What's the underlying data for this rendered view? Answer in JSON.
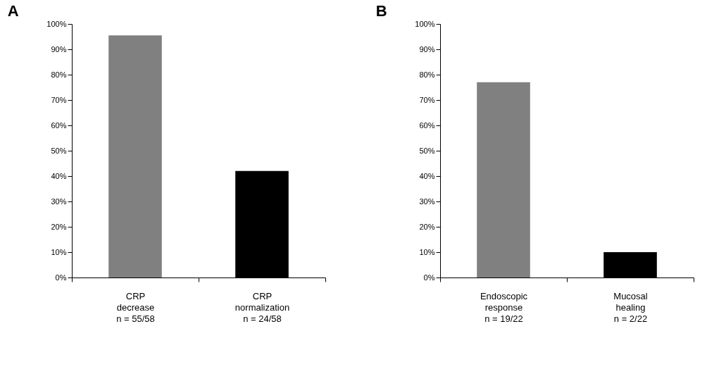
{
  "chart_data": [
    {
      "type": "bar",
      "title": "A",
      "categories": [
        "CRP\ndecrease\nn = 55/58",
        "CRP\nnormalization\nn = 24/58"
      ],
      "values": [
        95.5,
        42
      ],
      "colors": [
        "#808080",
        "#000000"
      ],
      "ylim": [
        0,
        100
      ],
      "yticks": [
        {
          "value": 0,
          "label": "0%"
        },
        {
          "value": 10,
          "label": "10%"
        },
        {
          "value": 20,
          "label": "20%"
        },
        {
          "value": 30,
          "label": "30%"
        },
        {
          "value": 40,
          "label": "40%"
        },
        {
          "value": 50,
          "label": "50%"
        },
        {
          "value": 60,
          "label": "60%"
        },
        {
          "value": 70,
          "label": "70%"
        },
        {
          "value": 80,
          "label": "80%"
        },
        {
          "value": 90,
          "label": "90%"
        },
        {
          "value": 100,
          "label": "100%"
        }
      ],
      "grid": false
    },
    {
      "type": "bar",
      "title": "B",
      "categories": [
        "Endoscopic\nresponse\nn = 19/22",
        "Mucosal\nhealing\nn = 2/22"
      ],
      "values": [
        77,
        10
      ],
      "colors": [
        "#808080",
        "#000000"
      ],
      "ylim": [
        0,
        100
      ],
      "yticks": [
        {
          "value": 0,
          "label": "0%"
        },
        {
          "value": 10,
          "label": "10%"
        },
        {
          "value": 20,
          "label": "20%"
        },
        {
          "value": 30,
          "label": "30%"
        },
        {
          "value": 40,
          "label": "40%"
        },
        {
          "value": 50,
          "label": "50%"
        },
        {
          "value": 60,
          "label": "60%"
        },
        {
          "value": 70,
          "label": "70%"
        },
        {
          "value": 80,
          "label": "80%"
        },
        {
          "value": 90,
          "label": "90%"
        },
        {
          "value": 100,
          "label": "100%"
        }
      ],
      "grid": false
    }
  ]
}
